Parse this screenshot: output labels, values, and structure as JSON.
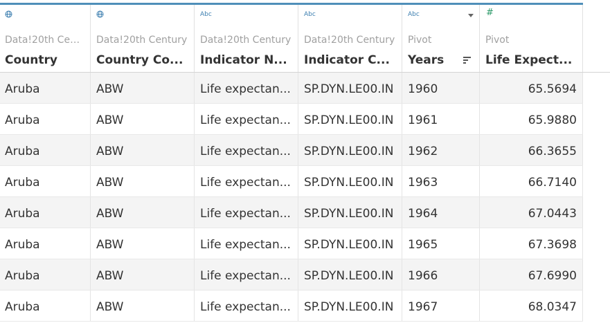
{
  "colors": {
    "accent": "#4f8fb9",
    "geo_icon": "#3d7fb0",
    "number_icon": "#2e9a6a",
    "row_alt": "#f4f4f4",
    "text": "#333333",
    "source_text": "#a0a0a0"
  },
  "columns": [
    {
      "type_icon": "globe-icon",
      "type_label": "",
      "source": "Data!20th Cent...",
      "name": "Country"
    },
    {
      "type_icon": "globe-icon",
      "type_label": "",
      "source": "Data!20th Century",
      "name": "Country Co..."
    },
    {
      "type_icon": "string-type-icon",
      "type_label": "Abc",
      "source": "Data!20th Century",
      "name": "Indicator N..."
    },
    {
      "type_icon": "string-type-icon",
      "type_label": "Abc",
      "source": "Data!20th Century",
      "name": "Indicator C..."
    },
    {
      "type_icon": "string-type-icon",
      "type_label": "Abc",
      "source": "Pivot",
      "name": "Years"
    },
    {
      "type_icon": "number-type-icon",
      "type_label": "#",
      "source": "Pivot",
      "name": "Life Expect..."
    }
  ],
  "rows": [
    [
      "Aruba",
      "ABW",
      "Life expectan...",
      "SP.DYN.LE00.IN",
      "1960",
      "65.5694"
    ],
    [
      "Aruba",
      "ABW",
      "Life expectan...",
      "SP.DYN.LE00.IN",
      "1961",
      "65.9880"
    ],
    [
      "Aruba",
      "ABW",
      "Life expectan...",
      "SP.DYN.LE00.IN",
      "1962",
      "66.3655"
    ],
    [
      "Aruba",
      "ABW",
      "Life expectan...",
      "SP.DYN.LE00.IN",
      "1963",
      "66.7140"
    ],
    [
      "Aruba",
      "ABW",
      "Life expectan...",
      "SP.DYN.LE00.IN",
      "1964",
      "67.0443"
    ],
    [
      "Aruba",
      "ABW",
      "Life expectan...",
      "SP.DYN.LE00.IN",
      "1965",
      "67.3698"
    ],
    [
      "Aruba",
      "ABW",
      "Life expectan...",
      "SP.DYN.LE00.IN",
      "1966",
      "67.6990"
    ],
    [
      "Aruba",
      "ABW",
      "Life expectan...",
      "SP.DYN.LE00.IN",
      "1967",
      "68.0347"
    ]
  ]
}
